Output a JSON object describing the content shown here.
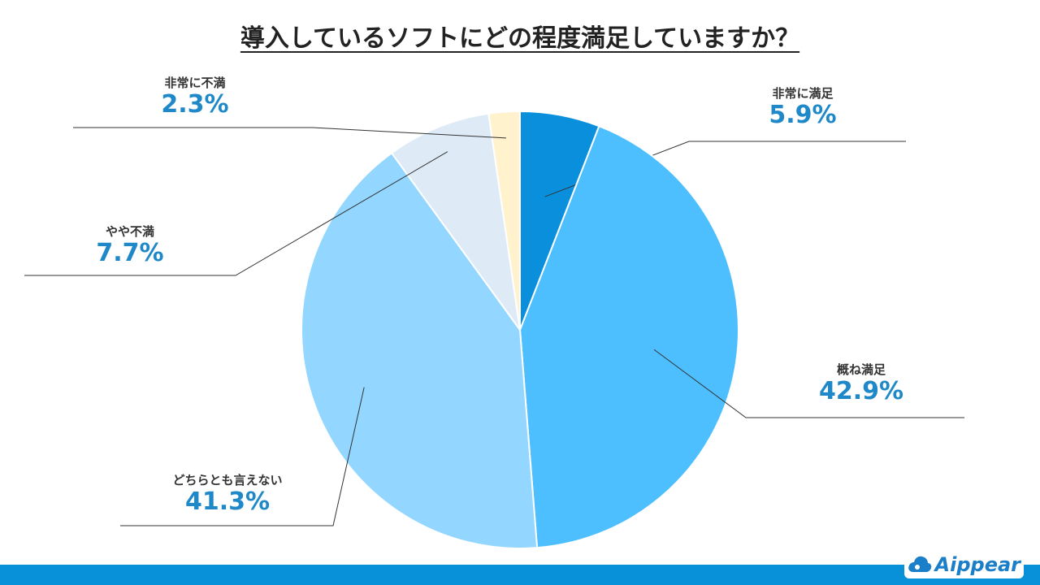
{
  "title": "導入しているソフトにどの程度満足していますか？",
  "brand": {
    "logo_text": "Aippear",
    "colors": {
      "footer_bar": "#0890d8",
      "logo": "#1a7ec8",
      "percent_text": "#1e88c8"
    }
  },
  "chart_data": {
    "type": "pie",
    "title": "導入しているソフトにどの程度満足していますか？",
    "start": "12 o'clock, clockwise",
    "slices": [
      {
        "label": "非常に満足",
        "value": 5.9,
        "display": "5.9%",
        "color": "#0a8fdc"
      },
      {
        "label": "概ね満足",
        "value": 42.9,
        "display": "42.9%",
        "color": "#4dbfff"
      },
      {
        "label": "どちらとも言えない",
        "value": 41.3,
        "display": "41.3%",
        "color": "#93d6ff"
      },
      {
        "label": "やや不満",
        "value": 7.7,
        "display": "7.7%",
        "color": "#deebf7"
      },
      {
        "label": "非常に不満",
        "value": 2.3,
        "display": "2.3%",
        "color": "#fff2cc"
      }
    ],
    "legend": "none",
    "data_labels": "outside with leader lines"
  }
}
